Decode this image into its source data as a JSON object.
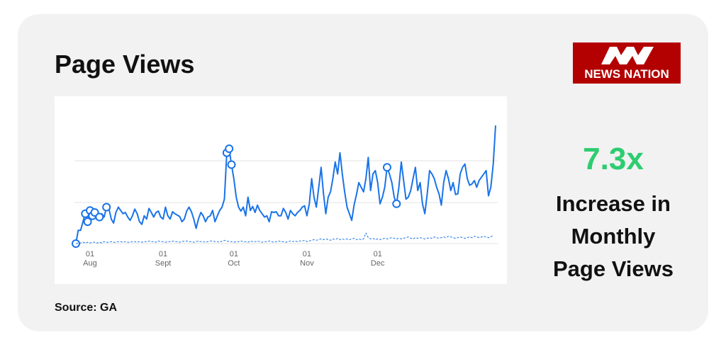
{
  "header": {
    "title": "Page Views"
  },
  "logo": {
    "text": "NEWS NATION",
    "colors": {
      "background": "#b30000",
      "text": "#ffffff"
    }
  },
  "stat": {
    "value": "7.3x",
    "value_color": "#2ecc71",
    "caption_lines": [
      "Increase in",
      "Monthly",
      "Page Views"
    ]
  },
  "source": "Source: GA",
  "chart_data": {
    "type": "line",
    "title": "",
    "xlabel": "",
    "ylabel": "",
    "grid": true,
    "x_ticks": [
      {
        "day": "01",
        "month": "Aug",
        "index": 6
      },
      {
        "day": "01",
        "month": "Sept",
        "index": 37
      },
      {
        "day": "01",
        "month": "Oct",
        "index": 67
      },
      {
        "day": "01",
        "month": "Nov",
        "index": 98
      },
      {
        "day": "01",
        "month": "Dec",
        "index": 128
      }
    ],
    "series": [
      {
        "color": "#1a73e8",
        "style": "solid",
        "values": [
          0,
          20,
          20,
          33,
          45,
          33,
          50,
          42,
          47,
          38,
          40,
          45,
          40,
          55,
          53,
          37,
          31,
          47,
          55,
          50,
          45,
          47,
          40,
          35,
          42,
          52,
          45,
          33,
          29,
          42,
          37,
          53,
          47,
          40,
          47,
          49,
          40,
          37,
          55,
          42,
          37,
          48,
          45,
          43,
          41,
          33,
          37,
          49,
          55,
          48,
          37,
          23,
          37,
          47,
          42,
          33,
          40,
          42,
          50,
          33,
          42,
          50,
          55,
          67,
          137,
          143,
          119,
          98,
          70,
          55,
          49,
          55,
          42,
          70,
          50,
          56,
          47,
          58,
          50,
          45,
          40,
          42,
          33,
          48,
          47,
          48,
          42,
          42,
          53,
          47,
          37,
          50,
          45,
          42,
          47,
          50,
          55,
          57,
          42,
          60,
          98,
          70,
          55,
          85,
          115,
          76,
          45,
          70,
          78,
          98,
          123,
          105,
          137,
          105,
          78,
          55,
          45,
          35,
          58,
          74,
          92,
          85,
          78,
          98,
          130,
          80,
          105,
          110,
          92,
          60,
          70,
          85,
          115,
          105,
          92,
          70,
          60,
          85,
          123,
          95,
          67,
          70,
          80,
          98,
          115,
          80,
          92,
          60,
          45,
          75,
          110,
          105,
          98,
          85,
          75,
          58,
          92,
          110,
          98,
          80,
          92,
          74,
          75,
          105,
          115,
          120,
          98,
          88,
          90,
          95,
          85,
          95,
          100,
          105,
          110,
          72,
          85,
          120,
          178
        ],
        "markers": [
          0,
          4,
          5,
          6,
          7,
          8,
          10,
          13,
          64,
          65,
          66,
          132,
          136
        ]
      },
      {
        "color": "#1a73e8",
        "style": "dashed",
        "values": [
          0,
          1,
          1,
          2,
          1,
          2,
          1,
          2,
          2,
          1,
          2,
          1,
          3,
          2,
          2,
          3,
          2,
          2,
          3,
          3,
          2,
          3,
          2,
          2,
          3,
          3,
          2,
          3,
          2,
          3,
          3,
          4,
          3,
          3,
          2,
          4,
          3,
          3,
          2,
          3,
          3,
          4,
          3,
          3,
          2,
          3,
          4,
          4,
          3,
          3,
          2,
          3,
          4,
          3,
          3,
          2,
          3,
          4,
          4,
          3,
          3,
          2,
          4,
          5,
          4,
          3,
          3,
          2,
          3,
          3,
          4,
          3,
          3,
          2,
          4,
          3,
          3,
          4,
          3,
          2,
          3,
          3,
          4,
          3,
          2,
          3,
          4,
          3,
          3,
          2,
          3,
          4,
          3,
          4,
          3,
          4,
          4,
          5,
          3,
          4,
          5,
          6,
          5,
          6,
          7,
          6,
          7,
          6,
          5,
          7,
          6,
          8,
          6,
          7,
          6,
          7,
          6,
          7,
          8,
          6,
          7,
          6,
          7,
          16,
          9,
          7,
          8,
          6,
          7,
          6,
          7,
          8,
          7,
          8,
          9,
          8,
          7,
          8,
          7,
          8,
          9,
          10,
          8,
          7,
          9,
          8,
          9,
          8,
          7,
          8,
          9,
          8,
          10,
          9,
          8,
          9,
          10,
          9,
          11,
          10,
          9,
          8,
          9,
          10,
          9,
          8,
          9,
          10,
          9,
          11,
          10,
          9,
          10,
          11,
          10,
          9,
          10,
          13
        ]
      }
    ]
  }
}
